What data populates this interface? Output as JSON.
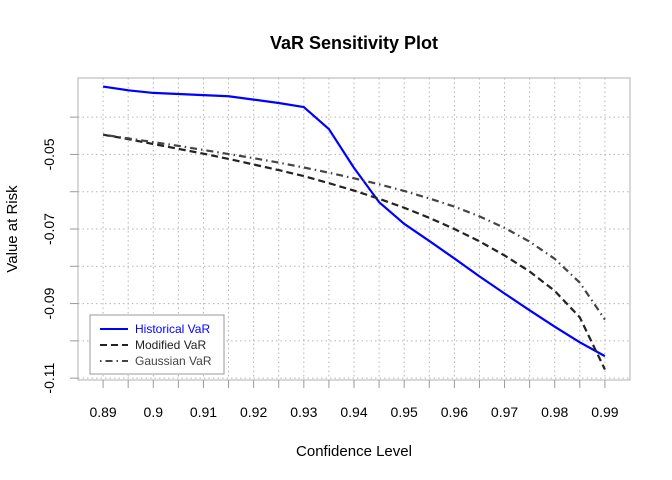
{
  "chart_data": {
    "type": "line",
    "title": "VaR Sensitivity Plot",
    "xlabel": "Confidence Level",
    "ylabel": "Value at Risk",
    "xlim": [
      0.885,
      0.995
    ],
    "ylim": [
      -0.1105,
      -0.0295
    ],
    "x_ticks": [
      0.89,
      0.9,
      0.91,
      0.92,
      0.93,
      0.94,
      0.95,
      0.96,
      0.97,
      0.98,
      0.99
    ],
    "x_tick_labels": [
      "0.89",
      "0.9",
      "0.91",
      "0.92",
      "0.93",
      "0.94",
      "0.95",
      "0.96",
      "0.97",
      "0.98",
      "0.99"
    ],
    "y_ticks": [
      -0.11,
      -0.09,
      -0.07,
      -0.05
    ],
    "y_tick_labels": [
      "-0.11",
      "-0.09",
      "-0.07",
      "-0.05"
    ],
    "grid": true,
    "legend_position": "bottom-left",
    "series": [
      {
        "name": "Historical VaR",
        "color": "#0000ff",
        "dash": "solid",
        "x": [
          0.89,
          0.895,
          0.9,
          0.905,
          0.91,
          0.915,
          0.92,
          0.925,
          0.93,
          0.935,
          0.94,
          0.945,
          0.95,
          0.955,
          0.96,
          0.965,
          0.97,
          0.975,
          0.98,
          0.985,
          0.99
        ],
        "y": [
          -0.0318,
          -0.0328,
          -0.0335,
          -0.0338,
          -0.0341,
          -0.0344,
          -0.0353,
          -0.0362,
          -0.0373,
          -0.0432,
          -0.0536,
          -0.0628,
          -0.0686,
          -0.0732,
          -0.0779,
          -0.0827,
          -0.0873,
          -0.0918,
          -0.0962,
          -0.1004,
          -0.1041
        ]
      },
      {
        "name": "Modified VaR",
        "color": "#222222",
        "dash": "dashed",
        "x": [
          0.89,
          0.895,
          0.9,
          0.905,
          0.91,
          0.915,
          0.92,
          0.925,
          0.93,
          0.935,
          0.94,
          0.945,
          0.95,
          0.955,
          0.96,
          0.965,
          0.97,
          0.975,
          0.98,
          0.985,
          0.99
        ],
        "y": [
          -0.0447,
          -0.0459,
          -0.0472,
          -0.0485,
          -0.0498,
          -0.0512,
          -0.0527,
          -0.0542,
          -0.0558,
          -0.0577,
          -0.0597,
          -0.0619,
          -0.0643,
          -0.067,
          -0.07,
          -0.0733,
          -0.0771,
          -0.0814,
          -0.0866,
          -0.0937,
          -0.1077
        ]
      },
      {
        "name": "Gaussian VaR",
        "color": "#444444",
        "dash": "dotdash",
        "x": [
          0.89,
          0.895,
          0.9,
          0.905,
          0.91,
          0.915,
          0.92,
          0.925,
          0.93,
          0.935,
          0.94,
          0.945,
          0.95,
          0.955,
          0.96,
          0.965,
          0.97,
          0.975,
          0.98,
          0.985,
          0.99
        ],
        "y": [
          -0.0447,
          -0.0457,
          -0.0467,
          -0.0477,
          -0.0488,
          -0.0499,
          -0.051,
          -0.0522,
          -0.0535,
          -0.0549,
          -0.0564,
          -0.058,
          -0.0598,
          -0.0618,
          -0.064,
          -0.0666,
          -0.0697,
          -0.0734,
          -0.078,
          -0.0844,
          -0.0943
        ]
      }
    ]
  }
}
